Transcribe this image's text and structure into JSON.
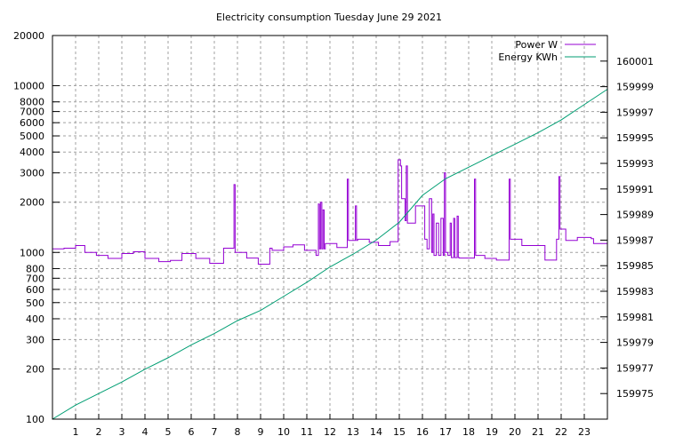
{
  "chart_data": {
    "type": "line",
    "title": "Electricity consumption Tuesday June 29 2021",
    "xlim": [
      0,
      24
    ],
    "x_ticks": [
      1,
      2,
      3,
      4,
      5,
      6,
      7,
      8,
      9,
      10,
      11,
      12,
      13,
      14,
      15,
      16,
      17,
      18,
      19,
      20,
      21,
      22,
      23
    ],
    "y_left": {
      "scale": "log",
      "lim": [
        100,
        20000
      ],
      "ticks": [
        100,
        200,
        300,
        400,
        500,
        600,
        700,
        800,
        1000,
        2000,
        3000,
        4000,
        5000,
        6000,
        7000,
        8000,
        10000,
        20000
      ]
    },
    "y_right": {
      "scale": "linear",
      "lim": [
        159973,
        160003
      ],
      "ticks": [
        159975,
        159977,
        159979,
        159981,
        159983,
        159985,
        159987,
        159989,
        159991,
        159993,
        159995,
        159997,
        159999,
        160001
      ]
    },
    "grid": true,
    "legend_position": "top-right",
    "series": [
      {
        "name": "Power W",
        "axis": "left",
        "color": "#9400d3",
        "step": true,
        "points": [
          [
            0,
            1050
          ],
          [
            0.5,
            1060
          ],
          [
            1,
            1100
          ],
          [
            1.4,
            1000
          ],
          [
            1.9,
            960
          ],
          [
            2.4,
            920
          ],
          [
            3,
            985
          ],
          [
            3.5,
            1010
          ],
          [
            4,
            920
          ],
          [
            4.6,
            880
          ],
          [
            5.1,
            895
          ],
          [
            5.6,
            985
          ],
          [
            6.2,
            920
          ],
          [
            6.8,
            860
          ],
          [
            7.4,
            1060
          ],
          [
            7.85,
            2550
          ],
          [
            7.9,
            1000
          ],
          [
            8.4,
            925
          ],
          [
            8.9,
            850
          ],
          [
            9.4,
            1060
          ],
          [
            9.5,
            1030
          ],
          [
            10,
            1080
          ],
          [
            10.4,
            1110
          ],
          [
            10.9,
            1030
          ],
          [
            11.4,
            960
          ],
          [
            11.5,
            1950
          ],
          [
            11.55,
            1050
          ],
          [
            11.6,
            2000
          ],
          [
            11.65,
            1050
          ],
          [
            11.7,
            1800
          ],
          [
            11.75,
            1050
          ],
          [
            11.8,
            1130
          ],
          [
            12.3,
            1070
          ],
          [
            12.75,
            2750
          ],
          [
            12.8,
            1180
          ],
          [
            13.1,
            1900
          ],
          [
            13.15,
            1180
          ],
          [
            13.2,
            1200
          ],
          [
            13.7,
            1150
          ],
          [
            14.1,
            1100
          ],
          [
            14.6,
            1160
          ],
          [
            14.95,
            3600
          ],
          [
            15.05,
            3300
          ],
          [
            15.1,
            2100
          ],
          [
            15.25,
            1550
          ],
          [
            15.3,
            3300
          ],
          [
            15.35,
            1500
          ],
          [
            15.7,
            1900
          ],
          [
            16.1,
            1200
          ],
          [
            16.2,
            1050
          ],
          [
            16.3,
            2100
          ],
          [
            16.4,
            1000
          ],
          [
            16.45,
            1700
          ],
          [
            16.5,
            960
          ],
          [
            16.6,
            1500
          ],
          [
            16.7,
            960
          ],
          [
            16.8,
            1600
          ],
          [
            16.9,
            960
          ],
          [
            16.95,
            3000
          ],
          [
            17,
            1000
          ],
          [
            17.1,
            960
          ],
          [
            17.2,
            1500
          ],
          [
            17.25,
            930
          ],
          [
            17.35,
            1600
          ],
          [
            17.4,
            930
          ],
          [
            17.5,
            1650
          ],
          [
            17.55,
            930
          ],
          [
            17.6,
            925
          ],
          [
            18.25,
            2750
          ],
          [
            18.3,
            960
          ],
          [
            18.7,
            920
          ],
          [
            19.2,
            900
          ],
          [
            19.75,
            2750
          ],
          [
            19.8,
            1200
          ],
          [
            20.3,
            1100
          ],
          [
            21.3,
            900
          ],
          [
            21.8,
            1200
          ],
          [
            21.9,
            2850
          ],
          [
            21.95,
            1380
          ],
          [
            22.2,
            1180
          ],
          [
            22.7,
            1230
          ],
          [
            23.3,
            1210
          ],
          [
            23.4,
            1130
          ],
          [
            24,
            1130
          ]
        ]
      },
      {
        "name": "Energy KWh",
        "axis": "right",
        "color": "#009e73",
        "step": false,
        "points": [
          [
            0,
            159973
          ],
          [
            1,
            159974.1
          ],
          [
            2,
            159975
          ],
          [
            3,
            159975.9
          ],
          [
            4,
            159976.9
          ],
          [
            5,
            159977.8
          ],
          [
            6,
            159978.8
          ],
          [
            7,
            159979.7
          ],
          [
            8,
            159980.7
          ],
          [
            9,
            159981.5
          ],
          [
            10,
            159982.6
          ],
          [
            11,
            159983.7
          ],
          [
            12,
            159984.9
          ],
          [
            13,
            159985.9
          ],
          [
            14,
            159987
          ],
          [
            15,
            159988.4
          ],
          [
            16,
            159990.5
          ],
          [
            17,
            159991.8
          ],
          [
            18,
            159992.7
          ],
          [
            19,
            159993.6
          ],
          [
            20,
            159994.5
          ],
          [
            21,
            159995.4
          ],
          [
            22,
            159996.4
          ],
          [
            23,
            159997.6
          ],
          [
            24,
            159998.8
          ]
        ]
      }
    ]
  }
}
